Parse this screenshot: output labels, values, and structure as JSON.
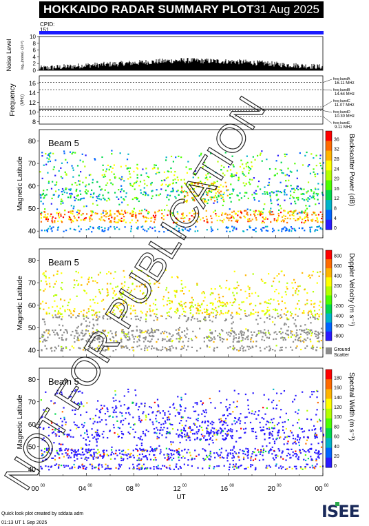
{
  "header": {
    "title": "HOKKAIDO RADAR SUMMARY PLOT",
    "date": "31 Aug 2025",
    "cpid_label": "CPID:",
    "cpid_value": "151"
  },
  "colors": {
    "cpid_bar": "#1a1aff",
    "ground_scatter": "#8c8c8c",
    "noise": "#000000",
    "scale": [
      "#ff0000",
      "#ff6a00",
      "#ffb400",
      "#ffff00",
      "#b4ff00",
      "#4cff00",
      "#00d84c",
      "#00b4c8",
      "#0064ff",
      "#2a1aff"
    ]
  },
  "chart_data": [
    {
      "type": "area",
      "name": "noise",
      "ylabel": "Noise Level",
      "ylabel_sub": "log₁₀(noise)· (10¹⁰)",
      "yticks": [
        "10",
        "8",
        "6",
        "4",
        "2",
        "0"
      ],
      "ylim": [
        0,
        10
      ],
      "xlim": [
        0,
        24
      ],
      "x": [
        0,
        1,
        2,
        3,
        4,
        5,
        6,
        7,
        8,
        9,
        10,
        11,
        12,
        13,
        14,
        15,
        16,
        17,
        18,
        19,
        20,
        21,
        22,
        23,
        24
      ],
      "values": [
        0.6,
        0.8,
        1.0,
        1.2,
        1.5,
        1.6,
        1.8,
        2.0,
        2.2,
        2.4,
        2.6,
        2.8,
        2.9,
        2.9,
        2.8,
        2.7,
        2.6,
        2.5,
        2.3,
        2.1,
        1.8,
        1.6,
        1.4,
        1.2,
        1.0
      ]
    },
    {
      "type": "line",
      "name": "frequency",
      "ylabel": "Frequency",
      "ylabel_unit": "(MHz)",
      "yticks": [
        "16",
        "14",
        "12",
        "10",
        "8"
      ],
      "ylim": [
        7.5,
        17.5
      ],
      "bands": [
        {
          "label": "freq bandA",
          "value": 16.11,
          "text": "16.11 MHz"
        },
        {
          "label": "freq bandB",
          "value": 14.64,
          "text": "14.64 MHz"
        },
        {
          "label": "freq bandC",
          "value": 11.07,
          "text": "11.07 MHz"
        },
        {
          "label": "freq bandD",
          "value": 10.3,
          "text": "10.30 MHz"
        },
        {
          "label": "freq bandE",
          "value": 9.11,
          "text": "9.11 MHz"
        }
      ],
      "operating_frequency": 10.6
    },
    {
      "type": "heatmap",
      "name": "power",
      "beam_label": "Beam  5",
      "ylabel": "Magnetic Latitude",
      "yticks": [
        "80",
        "70",
        "60",
        "50",
        "40"
      ],
      "ylim": [
        37,
        85
      ],
      "colorbar_label": "Backscatter Power (dB)",
      "colorbar_ticks": [
        "36",
        "32",
        "28",
        "24",
        "20",
        "16",
        "12",
        "8",
        "4",
        "0"
      ],
      "features": [
        {
          "t0": 0,
          "t1": 24,
          "lat": 46.5,
          "w": 3,
          "level": 0.9
        },
        {
          "t0": 0,
          "t1": 6,
          "lat": 56,
          "w": 2,
          "level": 0.2
        },
        {
          "t0": 6,
          "t1": 15,
          "lat": 63,
          "w": 4,
          "level": 0.5
        },
        {
          "t0": 11,
          "t1": 16,
          "lat": 57,
          "w": 3,
          "level": 0.7
        },
        {
          "t0": 0,
          "t1": 24,
          "lat": 42,
          "w": 1.5,
          "level": 0.15
        }
      ]
    },
    {
      "type": "heatmap",
      "name": "velocity",
      "beam_label": "Beam  5",
      "ylabel": "Magnetic Latitude",
      "yticks": [
        "80",
        "70",
        "60",
        "50",
        "40"
      ],
      "ylim": [
        37,
        85
      ],
      "colorbar_label": "Doppler Velocity (m s⁻¹)",
      "colorbar_ticks": [
        "800",
        "600",
        "400",
        "200",
        "0",
        "-200",
        "-400",
        "-600",
        "-800"
      ],
      "ground_label": "Ground",
      "ground_label2": "Scatter"
    },
    {
      "type": "heatmap",
      "name": "width",
      "beam_label": "Beam  5",
      "ylabel": "Magnetic Latitude",
      "yticks": [
        "80",
        "70",
        "60",
        "50",
        "40"
      ],
      "ylim": [
        37,
        85
      ],
      "colorbar_label": "Spectral Width (m s⁻¹)",
      "colorbar_ticks": [
        "180",
        "160",
        "140",
        "120",
        "100",
        "80",
        "60",
        "40",
        "20",
        "0"
      ]
    }
  ],
  "x_axis": {
    "ticks": [
      "00",
      "04",
      "08",
      "12",
      "16",
      "20",
      "00"
    ],
    "tick_sup": "00",
    "label": "UT"
  },
  "watermark": "NOT FOR PUBLICATION",
  "footer": {
    "line1": "Quick look plot created by sddata adm",
    "line2": "01:13 UT  1 Sep 2025",
    "logo": "ISEE"
  }
}
